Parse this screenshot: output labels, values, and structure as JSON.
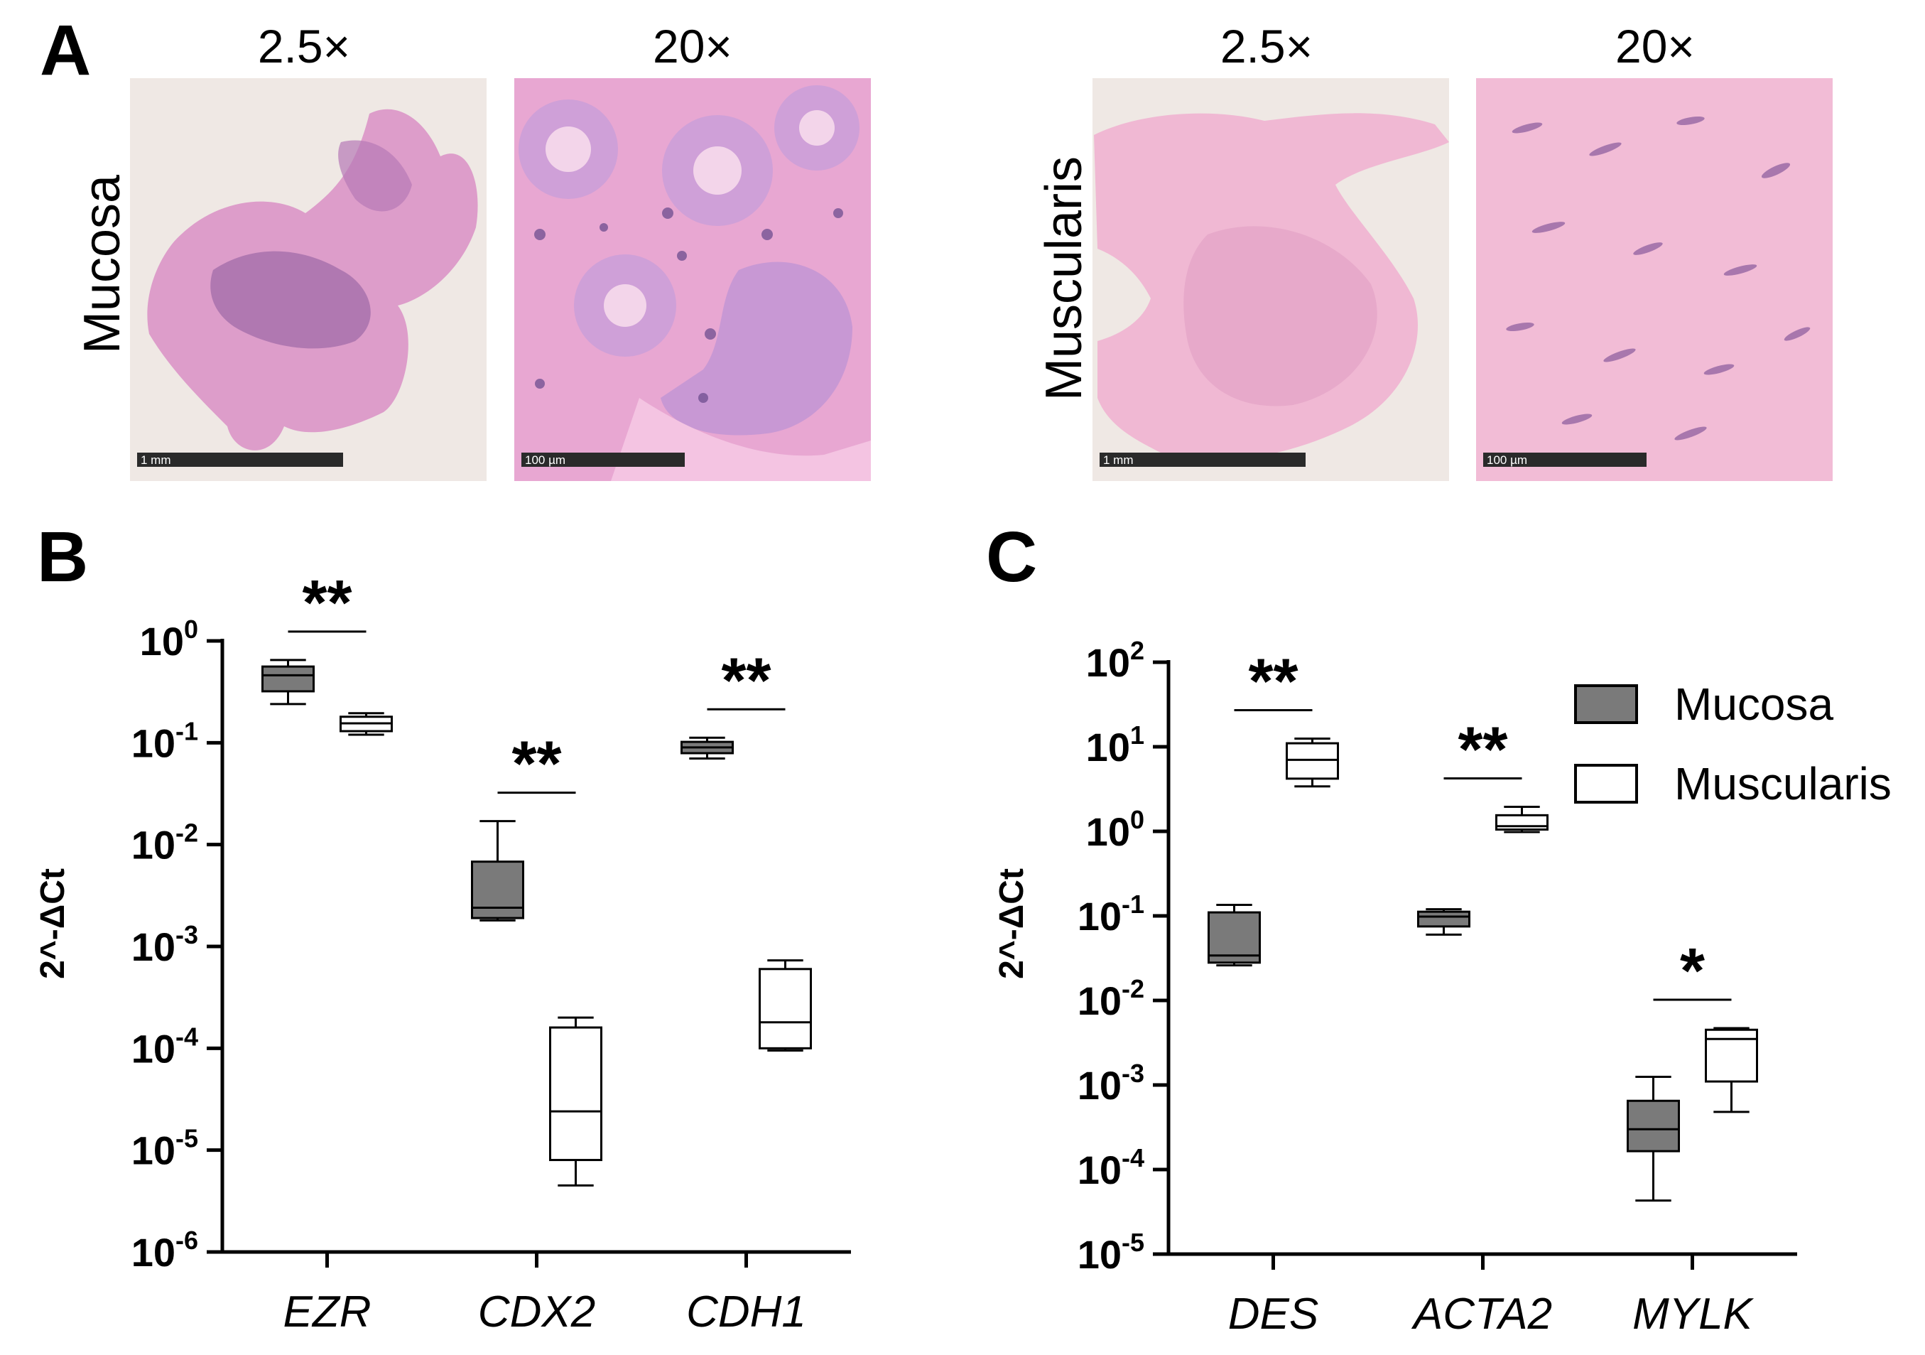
{
  "panels": {
    "A": "A",
    "B": "B",
    "C": "C"
  },
  "histology": {
    "row_labels": [
      "Mucosa",
      "Muscularis"
    ],
    "magnifications": [
      "2.5×",
      "20×",
      "2.5×",
      "20×"
    ],
    "scale_bars": [
      "1 mm",
      "100 µm",
      "1 mm",
      "100 µm"
    ],
    "colors": {
      "background": "#efe8e4",
      "tissue": "#d98fc6",
      "nuclei": "#8a5a9c",
      "muscle": "#f0b8d3",
      "scalebar": "#2a2a2a"
    }
  },
  "legend": {
    "items": [
      {
        "label": "Mucosa",
        "color": "#7a7a7a"
      },
      {
        "label": "Muscularis",
        "color": "#ffffff"
      }
    ]
  },
  "chart_data": [
    {
      "type": "box",
      "panel": "B",
      "ylabel": "2^-ΔCt",
      "yscale": "log",
      "ylim": [
        1e-06,
        1
      ],
      "yticks": [
        {
          "base": "10",
          "exp": "0"
        },
        {
          "base": "10",
          "exp": "-1"
        },
        {
          "base": "10",
          "exp": "-2"
        },
        {
          "base": "10",
          "exp": "-3"
        },
        {
          "base": "10",
          "exp": "-4"
        },
        {
          "base": "10",
          "exp": "-5"
        },
        {
          "base": "10",
          "exp": "-6"
        }
      ],
      "categories": [
        "EZR",
        "CDX2",
        "CDH1"
      ],
      "series": [
        {
          "name": "Mucosa",
          "boxes": [
            {
              "min": 0.24,
              "q1": 0.32,
              "median": 0.46,
              "q3": 0.56,
              "max": 0.65
            },
            {
              "min": 0.0018,
              "q1": 0.0019,
              "median": 0.0024,
              "q3": 0.0068,
              "max": 0.017
            },
            {
              "min": 0.07,
              "q1": 0.079,
              "median": 0.09,
              "q3": 0.102,
              "max": 0.112
            }
          ]
        },
        {
          "name": "Muscularis",
          "boxes": [
            {
              "min": 0.12,
              "q1": 0.13,
              "median": 0.155,
              "q3": 0.18,
              "max": 0.195
            },
            {
              "min": 4.5e-06,
              "q1": 8e-06,
              "median": 2.4e-05,
              "q3": 0.00016,
              "max": 0.0002
            },
            {
              "min": 9.5e-05,
              "q1": 0.0001,
              "median": 0.00018,
              "q3": 0.0006,
              "max": 0.00073
            }
          ]
        }
      ],
      "significance": [
        {
          "category": "EZR",
          "label": "**"
        },
        {
          "category": "CDX2",
          "label": "**"
        },
        {
          "category": "CDH1",
          "label": "**"
        }
      ]
    },
    {
      "type": "box",
      "panel": "C",
      "ylabel": "2^-ΔCt",
      "yscale": "log",
      "ylim": [
        1e-05,
        100
      ],
      "yticks": [
        {
          "base": "10",
          "exp": "2"
        },
        {
          "base": "10",
          "exp": "1"
        },
        {
          "base": "10",
          "exp": "0"
        },
        {
          "base": "10",
          "exp": "-1"
        },
        {
          "base": "10",
          "exp": "-2"
        },
        {
          "base": "10",
          "exp": "-3"
        },
        {
          "base": "10",
          "exp": "-4"
        },
        {
          "base": "10",
          "exp": "-5"
        }
      ],
      "categories": [
        "DES",
        "ACTA2",
        "MYLK"
      ],
      "series": [
        {
          "name": "Mucosa",
          "boxes": [
            {
              "min": 0.026,
              "q1": 0.028,
              "median": 0.034,
              "q3": 0.11,
              "max": 0.135
            },
            {
              "min": 0.06,
              "q1": 0.075,
              "median": 0.098,
              "q3": 0.112,
              "max": 0.12
            },
            {
              "min": 4.3e-05,
              "q1": 0.000165,
              "median": 0.0003,
              "q3": 0.00065,
              "max": 0.00125
            }
          ]
        },
        {
          "name": "Muscularis",
          "boxes": [
            {
              "min": 3.4,
              "q1": 4.2,
              "median": 7.0,
              "q3": 11.0,
              "max": 12.5
            },
            {
              "min": 0.98,
              "q1": 1.05,
              "median": 1.15,
              "q3": 1.55,
              "max": 1.95
            },
            {
              "min": 0.00048,
              "q1": 0.0011,
              "median": 0.0035,
              "q3": 0.0045,
              "max": 0.0047
            }
          ]
        }
      ],
      "significance": [
        {
          "category": "DES",
          "label": "**"
        },
        {
          "category": "ACTA2",
          "label": "**"
        },
        {
          "category": "MYLK",
          "label": "*"
        }
      ]
    }
  ]
}
